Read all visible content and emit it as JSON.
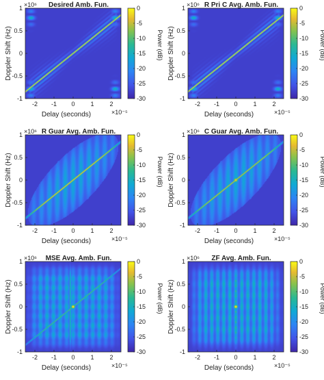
{
  "chart_data": [
    {
      "type": "heatmap",
      "title": "Desired Amb. Fun.",
      "pattern": "desired",
      "xlabel": "Delay (seconds)",
      "ylabel": "Doppler Shift (Hz)",
      "x_exponent": "×10⁻⁵",
      "y_exponent": "×10⁶",
      "xlim": [
        -2.5,
        2.5
      ],
      "ylim": [
        -1,
        1
      ],
      "xticks": [
        -2,
        -1,
        0,
        1,
        2
      ],
      "yticks": [
        1,
        0.5,
        0,
        -0.5,
        -1
      ],
      "colorbar": {
        "label": "Power (dB)",
        "range": [
          -30,
          0
        ],
        "ticks": [
          0,
          -5,
          -10,
          -15,
          -20,
          -25,
          -30
        ]
      }
    },
    {
      "type": "heatmap",
      "title": "R Pri C Avg. Amb. Fun.",
      "pattern": "pri",
      "xlabel": "Delay (seconds)",
      "ylabel": "Doppler Shift (Hz)",
      "x_exponent": "×10⁻⁵",
      "y_exponent": "×10⁶",
      "xlim": [
        -2.5,
        2.5
      ],
      "ylim": [
        -1,
        1
      ],
      "xticks": [
        -2,
        -1,
        0,
        1,
        2
      ],
      "yticks": [
        1,
        0.5,
        0,
        -0.5,
        -1
      ],
      "colorbar": {
        "label": "Power (dB)",
        "range": [
          -30,
          0
        ],
        "ticks": [
          0,
          -5,
          -10,
          -15,
          -20,
          -25,
          -30
        ]
      }
    },
    {
      "type": "heatmap",
      "title": "R Guar Avg. Amb. Fun.",
      "pattern": "rguar",
      "xlabel": "Delay (seconds)",
      "ylabel": "Doppler Shift (Hz)",
      "x_exponent": "×10⁻⁵",
      "y_exponent": "×10⁶",
      "xlim": [
        -2.5,
        2.5
      ],
      "ylim": [
        -1,
        1
      ],
      "xticks": [
        -2,
        -1,
        0,
        1,
        2
      ],
      "yticks": [
        1,
        0.5,
        0,
        -0.5,
        -1
      ],
      "colorbar": {
        "label": "Power (dB)",
        "range": [
          -30,
          0
        ],
        "ticks": [
          0,
          -5,
          -10,
          -15,
          -20,
          -25,
          -30
        ]
      }
    },
    {
      "type": "heatmap",
      "title": "C Guar Avg. Amb. Fun.",
      "pattern": "cguar",
      "xlabel": "Delay (seconds)",
      "ylabel": "Doppler Shift (Hz)",
      "x_exponent": "×10⁻⁵",
      "y_exponent": "×10⁶",
      "xlim": [
        -2.5,
        2.5
      ],
      "ylim": [
        -1,
        1
      ],
      "xticks": [
        -2,
        -1,
        0,
        1,
        2
      ],
      "yticks": [
        1,
        0.5,
        0,
        -0.5,
        -1
      ],
      "colorbar": {
        "label": "Power (dB)",
        "range": [
          -30,
          0
        ],
        "ticks": [
          0,
          -5,
          -10,
          -15,
          -20,
          -25,
          -30
        ]
      }
    },
    {
      "type": "heatmap",
      "title": "MSE Avg. Amb. Fun.",
      "pattern": "mse",
      "xlabel": "Delay (seconds)",
      "ylabel": "Doppler Shift (Hz)",
      "x_exponent": "×10⁻⁵",
      "y_exponent": "×10⁶",
      "xlim": [
        -2.5,
        2.5
      ],
      "ylim": [
        -1,
        1
      ],
      "xticks": [
        -2,
        -1,
        0,
        1,
        2
      ],
      "yticks": [
        1,
        0.5,
        0,
        -0.5,
        -1
      ],
      "colorbar": {
        "label": "Power (dB)",
        "range": [
          -30,
          0
        ],
        "ticks": [
          0,
          -5,
          -10,
          -15,
          -20,
          -25,
          -30
        ]
      }
    },
    {
      "type": "heatmap",
      "title": "ZF Avg. Amb. Fun.",
      "pattern": "zf",
      "xlabel": "Delay (seconds)",
      "ylabel": "Doppler Shift (Hz)",
      "x_exponent": "×10⁻⁵",
      "y_exponent": "×10⁶",
      "xlim": [
        -2.5,
        2.5
      ],
      "ylim": [
        -1,
        1
      ],
      "xticks": [
        -2,
        -1,
        0,
        1,
        2
      ],
      "yticks": [
        1,
        0.5,
        0,
        -0.5,
        -1
      ],
      "colorbar": {
        "label": "Power (dB)",
        "range": [
          -30,
          0
        ],
        "ticks": [
          0,
          -5,
          -10,
          -15,
          -20,
          -25,
          -30
        ]
      }
    }
  ]
}
